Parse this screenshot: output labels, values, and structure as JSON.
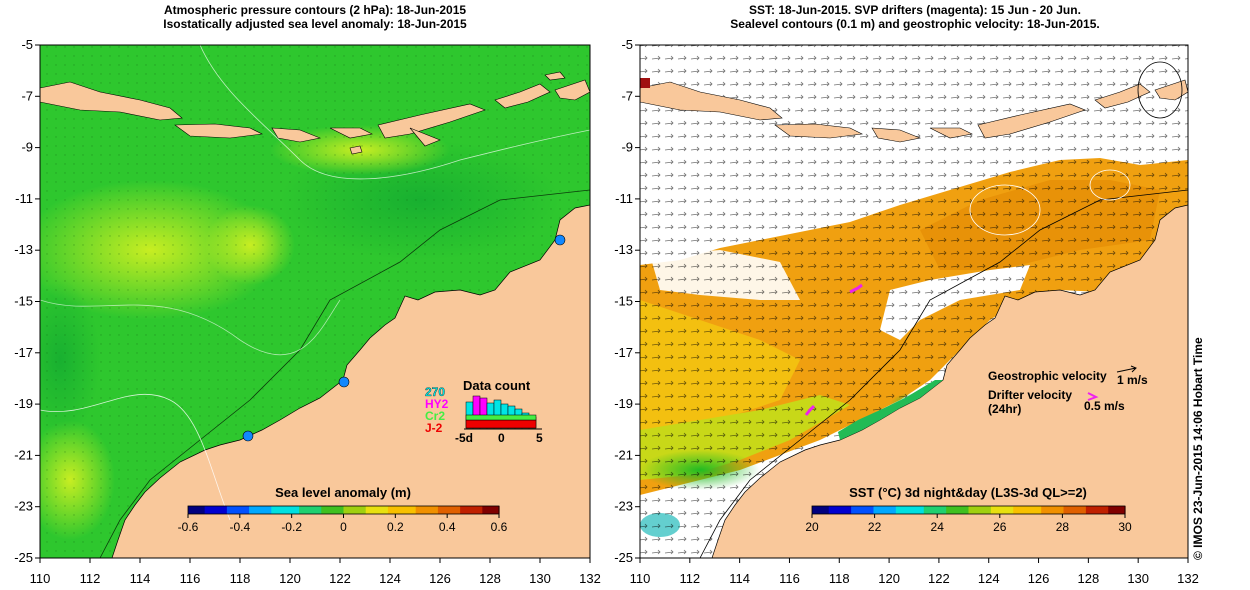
{
  "left_panel": {
    "title_line1": "Atmospheric pressure contours (2 hPa): 18-Jun-2015",
    "title_line2": "Isostatically adjusted sea level anomaly: 18-Jun-2015",
    "colorbar": {
      "label": "Sea level anomaly (m)",
      "ticks": [
        "-0.6",
        "-0.4",
        "-0.2",
        "0",
        "0.2",
        "0.4",
        "0.6"
      ],
      "range": [
        -0.6,
        0.6
      ]
    },
    "inset": {
      "title": "Data count",
      "missions": [
        {
          "name": "270",
          "color": "#00e5e5"
        },
        {
          "name": "HY2",
          "color": "#ff00ff"
        },
        {
          "name": "Cr2",
          "color": "#44ee44"
        },
        {
          "name": "J-2",
          "color": "#ee0000"
        }
      ],
      "axis_ticks": [
        "-5d",
        "0",
        "5"
      ]
    }
  },
  "right_panel": {
    "title_line1": "SST: 18-Jun-2015. SVP drifters (magenta): 15 Jun - 20 Jun.",
    "title_line2": "Sealevel contours (0.1 m) and geostrophic velocity: 18-Jun-2015.",
    "colorbar": {
      "label": "SST (°C) 3d night&day (L3S-3d QL>=2)",
      "ticks": [
        "20",
        "22",
        "24",
        "26",
        "28",
        "30"
      ],
      "range": [
        20,
        30
      ]
    },
    "legend": {
      "geostrophic_label": "Geostrophic velocity",
      "geostrophic_scale": "1 m/s",
      "drifter_label_line1": "Drifter velocity",
      "drifter_label_line2": "(24hr)",
      "drifter_scale": "0.5 m/s"
    }
  },
  "axes": {
    "x_ticks": [
      "110",
      "112",
      "114",
      "116",
      "118",
      "120",
      "122",
      "124",
      "126",
      "128",
      "130",
      "132"
    ],
    "y_ticks": [
      "-5",
      "-7",
      "-9",
      "-11",
      "-13",
      "-15",
      "-17",
      "-19",
      "-21",
      "-23",
      "-25"
    ],
    "lon_range": [
      110,
      132
    ],
    "lat_range": [
      -25,
      -5
    ]
  },
  "credit": "© IMOS 23-Jun-2015 14:06 Hobart Time",
  "colors": {
    "land": "#f9c89b",
    "sla_base": "#2ec72e",
    "sst_base": "#f0a010",
    "drifter": "#ee22ee"
  }
}
